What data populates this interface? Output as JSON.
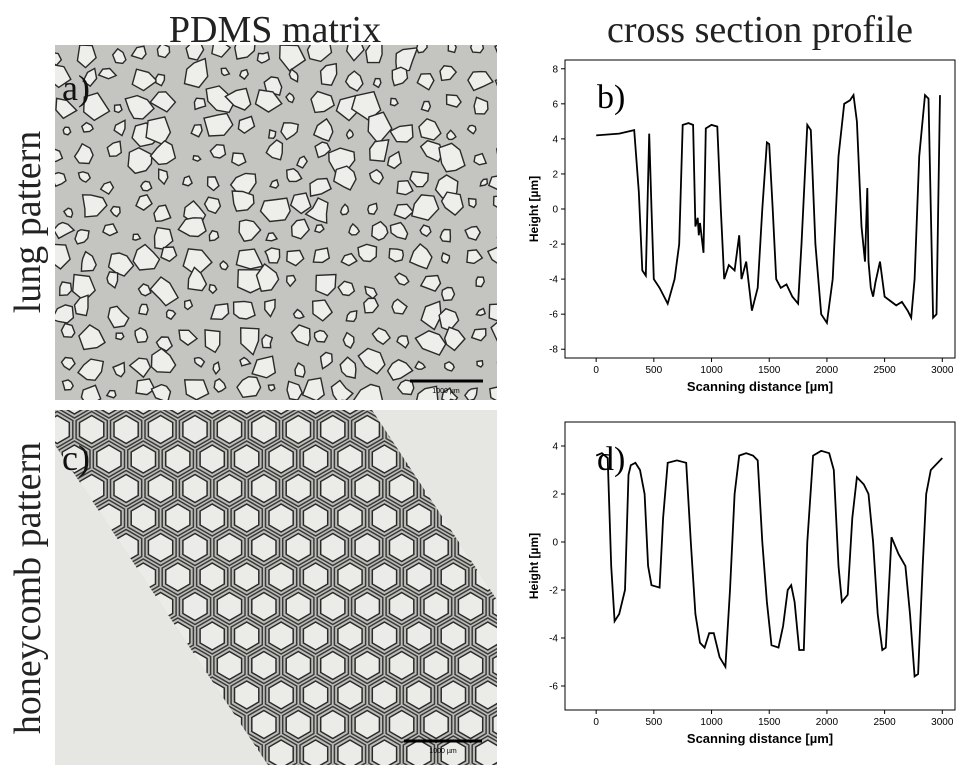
{
  "column_titles": [
    "PDMS matrix",
    "cross section profile"
  ],
  "row_labels": [
    "lung pattern",
    "honeycomb pattern"
  ],
  "image_labels": [
    "a)",
    "c)"
  ],
  "scale_bars": [
    "1000 µm",
    "1000 µm"
  ],
  "chart_data": [
    {
      "type": "line",
      "annotation": "b)",
      "color": "#000000",
      "xlabel": "Scanning distance [µm]",
      "ylabel": "Height [µm]",
      "xlim": [
        -270,
        3110
      ],
      "ylim": [
        -8.5,
        8.5
      ],
      "xticks": [
        0,
        500,
        1000,
        1500,
        2000,
        2500,
        3000
      ],
      "yticks": [
        -8,
        -6,
        -4,
        -2,
        0,
        2,
        4,
        6,
        8
      ],
      "x": [
        0,
        200,
        330,
        370,
        400,
        430,
        460,
        480,
        500,
        550,
        620,
        680,
        720,
        750,
        800,
        840,
        860,
        880,
        890,
        900,
        930,
        950,
        1000,
        1050,
        1080,
        1110,
        1150,
        1200,
        1240,
        1260,
        1300,
        1350,
        1400,
        1440,
        1480,
        1500,
        1530,
        1560,
        1600,
        1650,
        1700,
        1750,
        1780,
        1830,
        1860,
        1900,
        1950,
        2000,
        2050,
        2100,
        2150,
        2200,
        2230,
        2260,
        2300,
        2330,
        2350,
        2360,
        2380,
        2400,
        2420,
        2460,
        2500,
        2600,
        2650,
        2700,
        2730,
        2760,
        2800,
        2850,
        2880,
        2900,
        2920,
        2950,
        2980
      ],
      "values": [
        4.2,
        4.3,
        4.5,
        1,
        -3.5,
        -3.8,
        4.3,
        0,
        -4,
        -4.5,
        -5.4,
        -4,
        -2,
        4.8,
        4.9,
        4.8,
        -1,
        -0.5,
        -1.5,
        -0.8,
        -2.5,
        4.6,
        4.8,
        4.7,
        0,
        -4,
        -3.2,
        -3.5,
        -1.5,
        -4,
        -3,
        -5.8,
        -4.5,
        0,
        3.8,
        3.7,
        0,
        -4,
        -4.5,
        -4.3,
        -5,
        -5.4,
        -2,
        4.8,
        4.5,
        -2,
        -6,
        -6.5,
        -4,
        3,
        6,
        6.2,
        6.5,
        5,
        -1,
        -3,
        1.2,
        -3,
        -4.5,
        -5,
        -4.2,
        -3,
        -5,
        -5.5,
        -5.3,
        -5.8,
        -6.2,
        -4,
        3,
        6.5,
        6.3,
        0,
        -6.2,
        -6,
        6.5
      ]
    },
    {
      "type": "line",
      "annotation": "d)",
      "color": "#000000",
      "xlabel": "Scanning distance [µm]",
      "ylabel": "Height [µm]",
      "xlim": [
        -270,
        3110
      ],
      "ylim": [
        -7,
        5
      ],
      "xticks": [
        0,
        500,
        1000,
        1500,
        2000,
        2500,
        3000
      ],
      "yticks": [
        -6,
        -4,
        -2,
        0,
        2,
        4
      ],
      "x": [
        0,
        50,
        100,
        130,
        160,
        200,
        250,
        280,
        300,
        340,
        380,
        420,
        450,
        480,
        550,
        580,
        620,
        700,
        780,
        820,
        860,
        900,
        940,
        980,
        1020,
        1070,
        1120,
        1160,
        1200,
        1240,
        1300,
        1360,
        1400,
        1440,
        1480,
        1520,
        1580,
        1620,
        1660,
        1690,
        1720,
        1760,
        1800,
        1830,
        1880,
        1950,
        2020,
        2060,
        2100,
        2130,
        2180,
        2220,
        2260,
        2320,
        2360,
        2400,
        2440,
        2480,
        2510,
        2560,
        2620,
        2680,
        2720,
        2760,
        2790,
        2830,
        2860,
        2900,
        3000
      ],
      "values": [
        3.6,
        3.7,
        3.5,
        -1,
        -3.3,
        -3,
        -2,
        2.8,
        3.2,
        3.3,
        3,
        2,
        -1,
        -1.8,
        -1.9,
        1,
        3.3,
        3.4,
        3.3,
        0,
        -3,
        -4.2,
        -4.4,
        -3.8,
        -3.8,
        -4.8,
        -5.2,
        -2,
        2,
        3.6,
        3.7,
        3.6,
        3.4,
        0,
        -2.5,
        -4.3,
        -4.4,
        -3.5,
        -2,
        -1.8,
        -2.5,
        -4.5,
        -4.5,
        0,
        3.6,
        3.8,
        3.7,
        3,
        -1,
        -2.5,
        -2.2,
        1,
        2.7,
        2.4,
        2,
        0,
        -3,
        -4.5,
        -4.4,
        0.2,
        -0.5,
        -1,
        -3,
        -5.6,
        -5.5,
        -1,
        2,
        3,
        3.5
      ]
    }
  ]
}
